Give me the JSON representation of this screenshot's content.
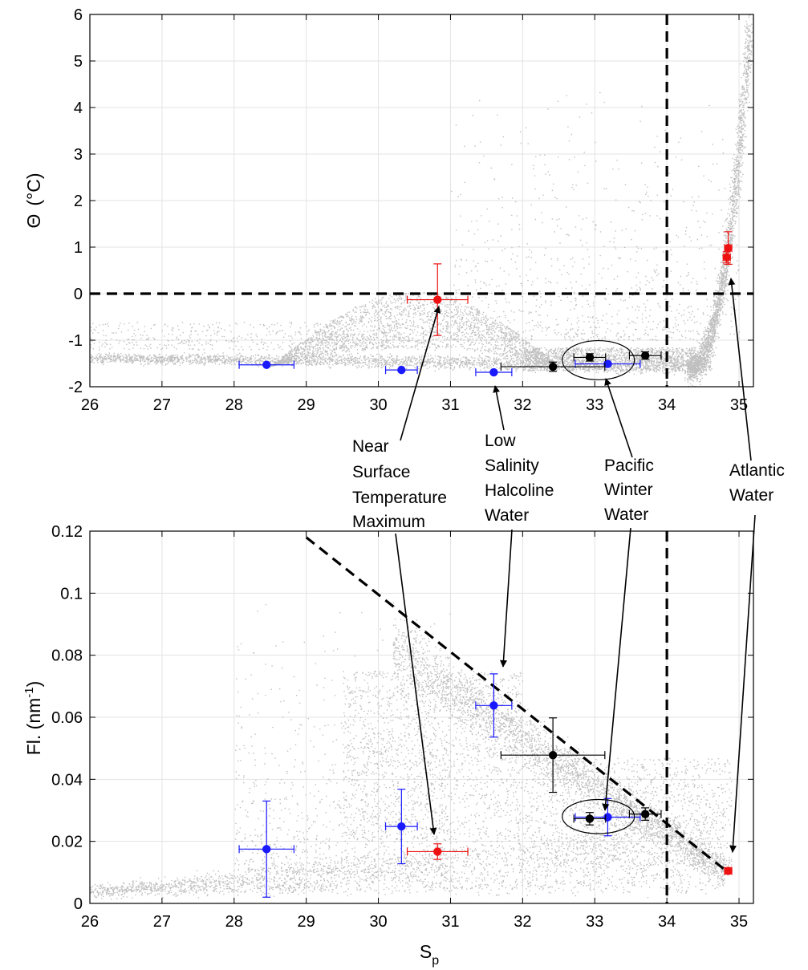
{
  "chart_data": [
    {
      "type": "scatter",
      "title": "",
      "xlabel": "",
      "ylabel_main": "Θ",
      "ylabel_unit": "(°C)",
      "xlim": [
        26,
        35.2
      ],
      "ylim": [
        -2,
        6
      ],
      "xticks": [
        26,
        27,
        28,
        29,
        30,
        31,
        32,
        33,
        34,
        35
      ],
      "yticks": [
        -2,
        -1,
        0,
        1,
        2,
        3,
        4,
        5,
        6
      ],
      "grid": true,
      "reference_lines": [
        {
          "orientation": "vertical",
          "value": 34,
          "style": "dashed"
        },
        {
          "orientation": "horizontal",
          "value": 0,
          "style": "dashed"
        }
      ],
      "background_cloud_color": "#b4b4b4",
      "series": [
        {
          "color": "#1a1aff",
          "points": [
            {
              "x": 28.45,
              "y": -1.53,
              "xerr": 0.38,
              "yerr": 0.0
            },
            {
              "x": 30.32,
              "y": -1.64,
              "xerr": 0.22,
              "yerr": 0.0
            },
            {
              "x": 31.6,
              "y": -1.69,
              "xerr": 0.25,
              "yerr": 0.0
            },
            {
              "x": 33.18,
              "y": -1.51,
              "xerr": 0.45,
              "yerr": 0.0
            }
          ]
        },
        {
          "color": "#ee1111",
          "points": [
            {
              "x": 30.82,
              "y": -0.13,
              "xerr": 0.42,
              "yerr": 0.77
            },
            {
              "x": 34.85,
              "y": 0.98,
              "xerr": 0.05,
              "yerr": 0.35
            },
            {
              "x": 34.83,
              "y": 0.78,
              "xerr": 0.05,
              "yerr": 0.12
            }
          ]
        },
        {
          "color": "#000000",
          "points": [
            {
              "x": 32.42,
              "y": -1.57,
              "xerr": 0.72,
              "yerr": 0.1
            },
            {
              "x": 32.93,
              "y": -1.37,
              "xerr": 0.22,
              "yerr": 0.08
            },
            {
              "x": 33.7,
              "y": -1.33,
              "xerr": 0.22,
              "yerr": 0.08
            }
          ]
        }
      ],
      "ellipse": {
        "cx": 33.05,
        "cy": -1.43,
        "rx": 0.5,
        "ry": 0.42
      }
    },
    {
      "type": "scatter",
      "title": "",
      "xlabel_main": "S",
      "xlabel_sub": "p",
      "ylabel_main": "Fl. (nm",
      "ylabel_sup": "-1",
      "ylabel_end": ")",
      "xlim": [
        26,
        35.2
      ],
      "ylim": [
        0,
        0.12
      ],
      "xticks": [
        26,
        27,
        28,
        29,
        30,
        31,
        32,
        33,
        34,
        35
      ],
      "yticks": [
        0,
        0.02,
        0.04,
        0.06,
        0.08,
        0.1,
        0.12
      ],
      "ytick_labels": [
        "0",
        "0.02",
        "0.04",
        "0.06",
        "0.08",
        "0.1",
        "0.12"
      ],
      "grid": true,
      "reference_lines": [
        {
          "orientation": "vertical",
          "value": 34,
          "style": "dashed"
        },
        {
          "orientation": "diagonal",
          "from": [
            29,
            0.118
          ],
          "to": [
            34.85,
            0.01
          ],
          "style": "dashed"
        }
      ],
      "background_cloud_color": "#b4b4b4",
      "series": [
        {
          "color": "#1a1aff",
          "points": [
            {
              "x": 28.45,
              "y": 0.0175,
              "xerr": 0.38,
              "yerr": 0.0155
            },
            {
              "x": 30.32,
              "y": 0.0248,
              "xerr": 0.22,
              "yerr": 0.012
            },
            {
              "x": 31.6,
              "y": 0.0638,
              "xerr": 0.25,
              "yerr": 0.0102
            },
            {
              "x": 33.18,
              "y": 0.0278,
              "xerr": 0.45,
              "yerr": 0.006
            }
          ]
        },
        {
          "color": "#ee1111",
          "points": [
            {
              "x": 30.82,
              "y": 0.0167,
              "xerr": 0.42,
              "yerr": 0.0025
            },
            {
              "x": 34.85,
              "y": 0.0105,
              "xerr": 0.05,
              "yerr": 0.001
            }
          ]
        },
        {
          "color": "#000000",
          "points": [
            {
              "x": 32.42,
              "y": 0.0478,
              "xerr": 0.72,
              "yerr": 0.012
            },
            {
              "x": 32.93,
              "y": 0.0273,
              "xerr": 0.22,
              "yerr": 0.002
            },
            {
              "x": 33.7,
              "y": 0.0288,
              "xerr": 0.22,
              "yerr": 0.002
            }
          ]
        }
      ],
      "ellipse": {
        "cx": 33.05,
        "cy": 0.028,
        "rx": 0.5,
        "ry": 0.0055
      }
    }
  ],
  "annotations": [
    {
      "id": "nstm",
      "lines": [
        "Near",
        "Surface",
        "Temperature",
        "Maximum"
      ]
    },
    {
      "id": "lshw",
      "lines": [
        "Low",
        "Salinity",
        "Halcoline",
        "Water"
      ]
    },
    {
      "id": "pww",
      "lines": [
        "Pacific",
        "Winter",
        "Water"
      ]
    },
    {
      "id": "aw",
      "lines": [
        "Atlantic",
        "Water"
      ]
    }
  ]
}
